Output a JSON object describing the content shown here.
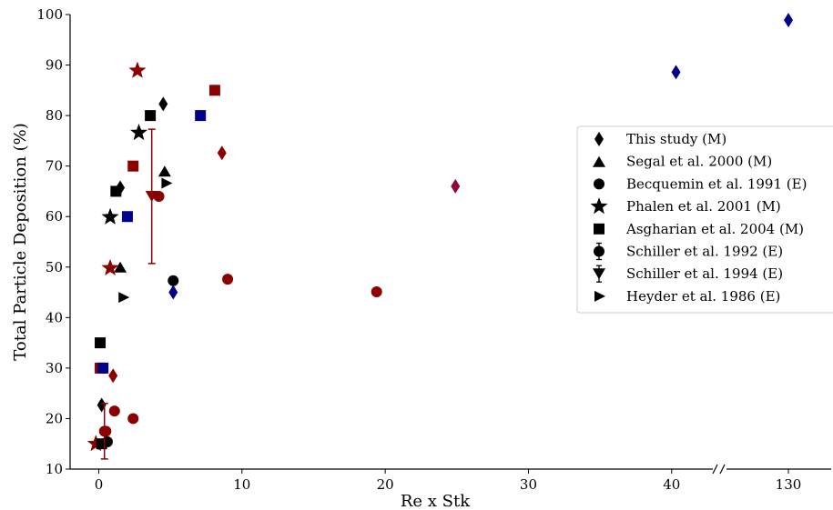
{
  "chart_data": {
    "type": "scatter",
    "xlabel": "Re x Stk",
    "ylabel": "Total Particle Deposition (%)",
    "ylim": [
      10,
      100
    ],
    "xlim_main": [
      -2,
      43
    ],
    "x_break": {
      "after": 43,
      "label": "130",
      "value": 130
    },
    "x_ticks": [
      0,
      10,
      20,
      30,
      40,
      130
    ],
    "x_tick_labels": [
      "0",
      "10",
      "20",
      "30",
      "40",
      "130"
    ],
    "y_ticks": [
      10,
      20,
      30,
      40,
      50,
      60,
      70,
      80,
      90,
      100
    ],
    "y_tick_labels": [
      "10",
      "20",
      "30",
      "40",
      "50",
      "60",
      "70",
      "80",
      "90",
      "100"
    ],
    "grid": false,
    "legend_position": "right",
    "colors": {
      "black": "#000000",
      "red": "#8b0000",
      "blue": "#00008b",
      "purple": "#8b0a3a"
    },
    "series": [
      {
        "name": "This study",
        "tag": "(M)",
        "marker": "diamond",
        "points": [
          {
            "x": 0.2,
            "y": 22.7,
            "c": "black"
          },
          {
            "x": 1.0,
            "y": 28.5,
            "c": "red"
          },
          {
            "x": 1.5,
            "y": 65.7,
            "c": "black"
          },
          {
            "x": 4.5,
            "y": 82.3,
            "c": "black"
          },
          {
            "x": 5.2,
            "y": 45.0,
            "c": "blue"
          },
          {
            "x": 8.6,
            "y": 72.6,
            "c": "red"
          },
          {
            "x": 24.9,
            "y": 66.0,
            "c": "purple"
          },
          {
            "x": 40.3,
            "y": 88.6,
            "c": "blue"
          },
          {
            "x": 130,
            "y": 98.9,
            "c": "blue"
          }
        ]
      },
      {
        "name": "Segal et al. 2000",
        "tag": "(M)",
        "marker": "triangle-up",
        "points": [
          {
            "x": 1.5,
            "y": 50.0,
            "c": "black"
          },
          {
            "x": 4.6,
            "y": 69.0,
            "c": "black"
          }
        ]
      },
      {
        "name": "Becquemin et al. 1991",
        "tag": "(E)",
        "marker": "circle",
        "points": [
          {
            "x": 0.6,
            "y": 15.4,
            "c": "black"
          },
          {
            "x": 0.5,
            "y": 17.5,
            "c": "red"
          },
          {
            "x": 1.1,
            "y": 21.5,
            "c": "red"
          },
          {
            "x": 2.4,
            "y": 20.0,
            "c": "red"
          },
          {
            "x": 4.2,
            "y": 64.0,
            "c": "red"
          },
          {
            "x": 5.2,
            "y": 47.3,
            "c": "black"
          },
          {
            "x": 9.0,
            "y": 47.6,
            "c": "red"
          },
          {
            "x": 19.4,
            "y": 45.1,
            "c": "red"
          }
        ]
      },
      {
        "name": "Phalen et al. 2001",
        "tag": "(M)",
        "marker": "star",
        "points": [
          {
            "x": -0.2,
            "y": 15.0,
            "c": "red"
          },
          {
            "x": 0.8,
            "y": 59.9,
            "c": "black"
          },
          {
            "x": 0.8,
            "y": 49.8,
            "c": "red"
          },
          {
            "x": 2.8,
            "y": 76.6,
            "c": "black"
          },
          {
            "x": 2.7,
            "y": 88.9,
            "c": "red"
          }
        ]
      },
      {
        "name": "Asgharian et al. 2004",
        "tag": "(M)",
        "marker": "square",
        "points": [
          {
            "x": 0.1,
            "y": 35.0,
            "c": "black"
          },
          {
            "x": 0.1,
            "y": 30.0,
            "c": "red"
          },
          {
            "x": 0.3,
            "y": 30.0,
            "c": "blue"
          },
          {
            "x": 0.2,
            "y": 15.0,
            "c": "black"
          },
          {
            "x": 1.2,
            "y": 65.0,
            "c": "black"
          },
          {
            "x": 2.4,
            "y": 70.0,
            "c": "red"
          },
          {
            "x": 2.0,
            "y": 60.0,
            "c": "blue"
          },
          {
            "x": 3.6,
            "y": 80.0,
            "c": "black"
          },
          {
            "x": 7.1,
            "y": 80.0,
            "c": "blue"
          },
          {
            "x": 8.1,
            "y": 85.0,
            "c": "red"
          }
        ]
      },
      {
        "name": "Schiller et al. 1992",
        "tag": "(E)",
        "marker": "circle-errorbar",
        "points": [
          {
            "x": 0.4,
            "y": 17.5,
            "yerr": 5.5,
            "c": "red"
          }
        ]
      },
      {
        "name": "Schiller et al. 1994",
        "tag": "(E)",
        "marker": "triangle-down-errorbar",
        "points": [
          {
            "x": 3.7,
            "y": 64.0,
            "yerr": 13.3,
            "c": "red"
          }
        ]
      },
      {
        "name": "Heyder et al. 1986",
        "tag": "(E)",
        "marker": "triangle-right",
        "points": [
          {
            "x": 1.7,
            "y": 44.0,
            "c": "black"
          },
          {
            "x": 4.7,
            "y": 66.6,
            "c": "black"
          }
        ]
      }
    ]
  }
}
